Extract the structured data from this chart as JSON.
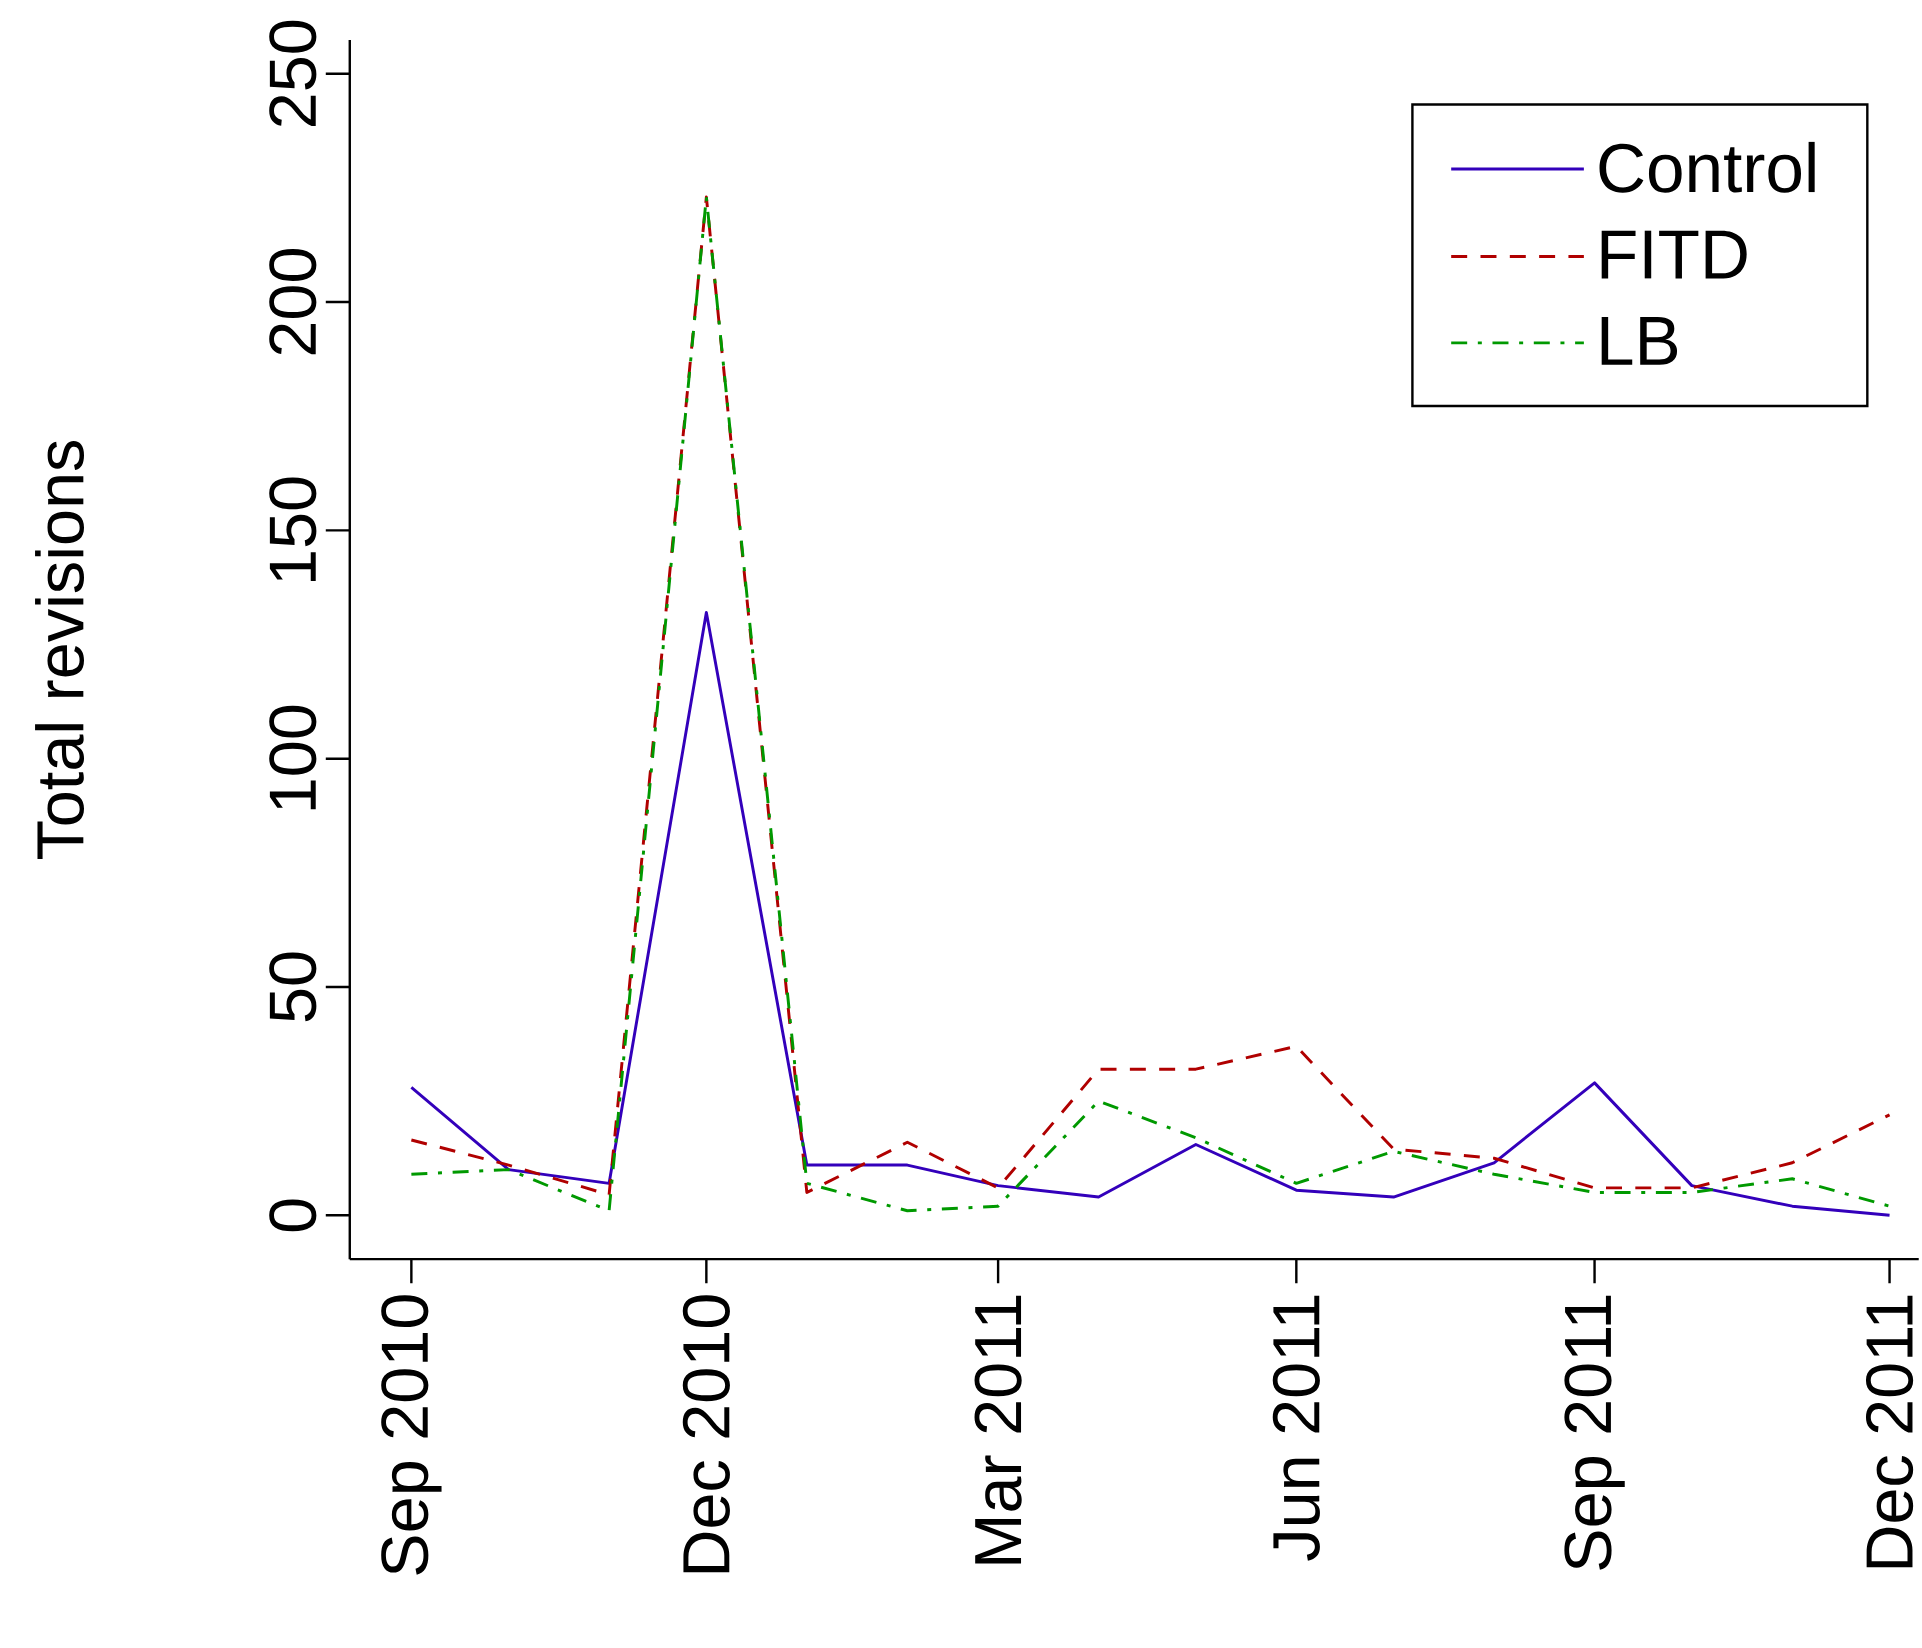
{
  "chart_data": {
    "type": "line",
    "ylabel": "Total revisions",
    "x": [
      "2010-09",
      "2010-10",
      "2010-11",
      "2010-12",
      "2011-01",
      "2011-02",
      "2011-03",
      "2011-04",
      "2011-05",
      "2011-06",
      "2011-07",
      "2011-08",
      "2011-09",
      "2011-10",
      "2011-11",
      "2011-12"
    ],
    "series": [
      {
        "name": "Control",
        "color": "#3300bb",
        "line_style": "solid",
        "values": [
          28,
          10,
          7,
          132,
          11,
          11,
          6.5,
          4,
          15.5,
          5.5,
          4,
          11.5,
          29,
          6.5,
          2,
          0
        ]
      },
      {
        "name": "FITD",
        "color": "#b00000",
        "line_style": "dashed",
        "values": [
          16.5,
          11,
          4.5,
          223,
          5,
          16,
          6,
          32,
          32,
          37,
          14.5,
          12.5,
          6,
          6,
          11.5,
          22
        ]
      },
      {
        "name": "LB",
        "color": "#009900",
        "line_style": "dashdot",
        "values": [
          9,
          10,
          1,
          223,
          7,
          1,
          2,
          25,
          17,
          7,
          14,
          9,
          5,
          5,
          8,
          2
        ]
      }
    ],
    "xlim": [
      "2010-08-13",
      "2011-12-10"
    ],
    "ylim": [
      -9.6,
      257.4
    ],
    "xticks": [
      {
        "value": "2010-09",
        "label": "Sep 2010"
      },
      {
        "value": "2010-12",
        "label": "Dec 2010"
      },
      {
        "value": "2011-03",
        "label": "Mar 2011"
      },
      {
        "value": "2011-06",
        "label": "Jun 2011"
      },
      {
        "value": "2011-09",
        "label": "Sep 2011"
      },
      {
        "value": "2011-12",
        "label": "Dec 2011"
      }
    ],
    "yticks": [
      0,
      50,
      100,
      150,
      200,
      250
    ],
    "legend": "top right",
    "grid": false,
    "marker": "none"
  }
}
